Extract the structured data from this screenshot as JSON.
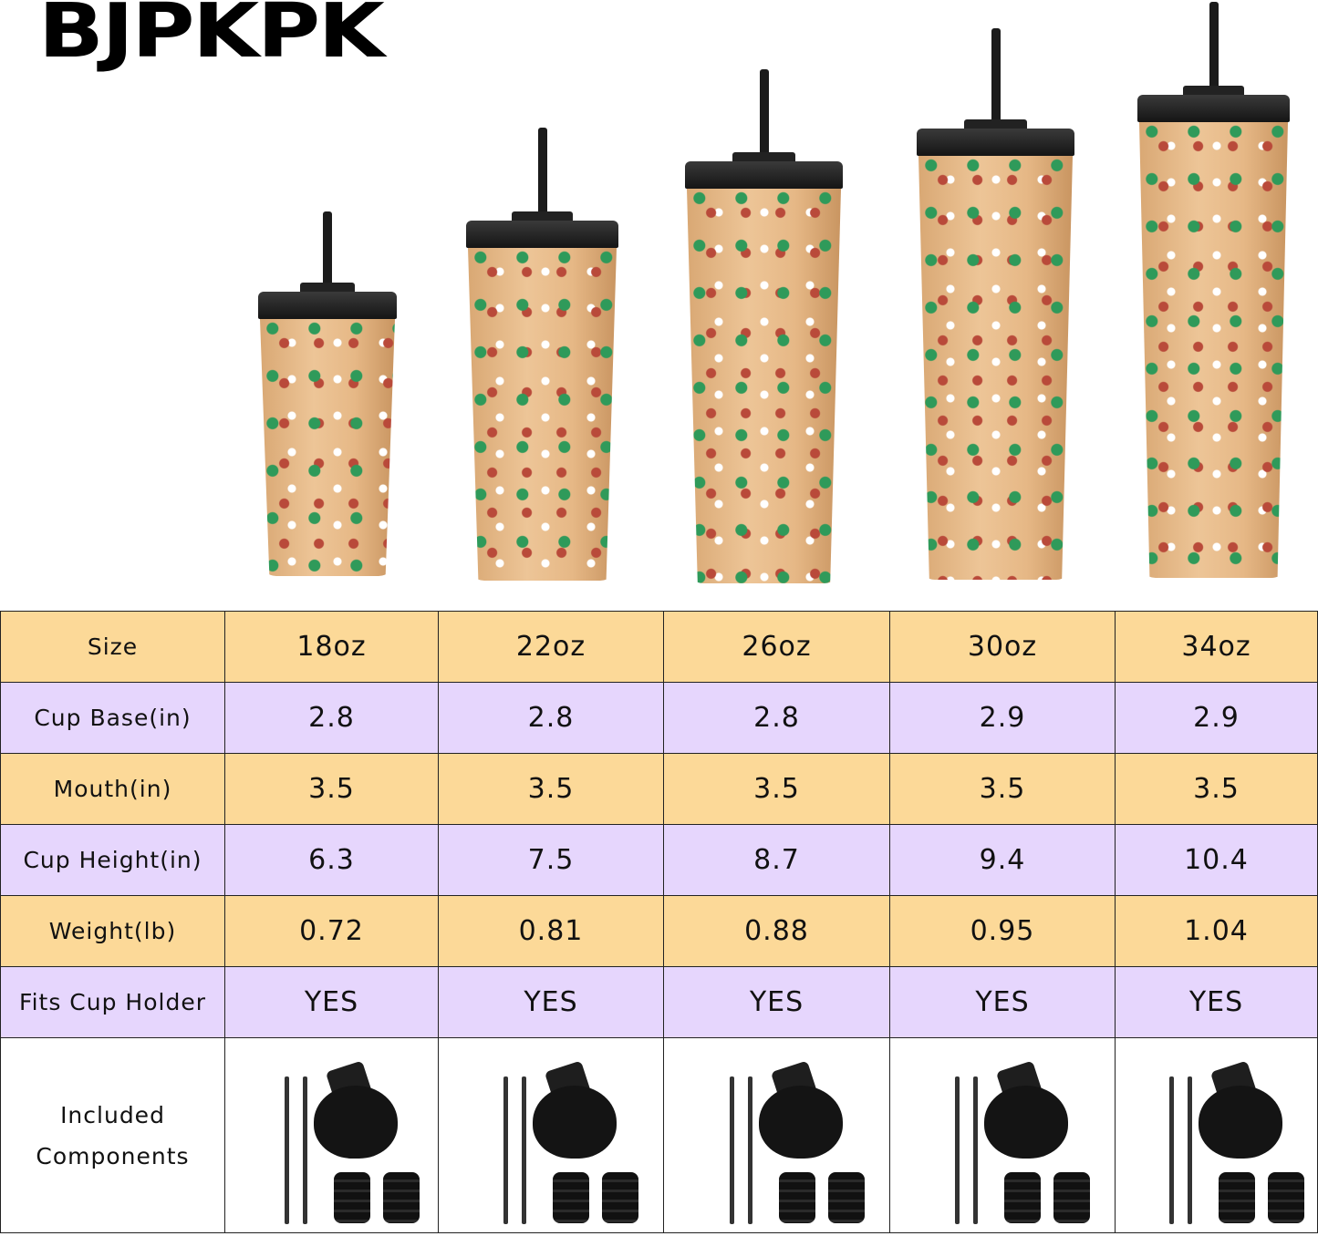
{
  "brand": {
    "logo_text": "BJPKPK"
  },
  "colors": {
    "header_row": "#fcd998",
    "alt_row": "#e6d6fd",
    "tumbler_body": "#e6b886",
    "lid": "#1b1b1b"
  },
  "table": {
    "columns": [
      "18oz",
      "22oz",
      "26oz",
      "30oz",
      "34oz"
    ],
    "rows": [
      {
        "label": "Size",
        "values": [
          "18oz",
          "22oz",
          "26oz",
          "30oz",
          "34oz"
        ]
      },
      {
        "label": "Cup Base(in)",
        "values": [
          "2.8",
          "2.8",
          "2.8",
          "2.9",
          "2.9"
        ]
      },
      {
        "label": "Mouth(in)",
        "values": [
          "3.5",
          "3.5",
          "3.5",
          "3.5",
          "3.5"
        ]
      },
      {
        "label": "Cup Height(in)",
        "values": [
          "6.3",
          "7.5",
          "8.7",
          "9.4",
          "10.4"
        ]
      },
      {
        "label": "Weight(lb)",
        "values": [
          "0.72",
          "0.81",
          "0.88",
          "0.95",
          "1.04"
        ]
      },
      {
        "label": "Fits Cup Holder",
        "values": [
          "YES",
          "YES",
          "YES",
          "YES",
          "YES"
        ]
      }
    ],
    "components_label_line1": "Included",
    "components_label_line2": "Components",
    "components": [
      "straw",
      "straw",
      "flip-lid",
      "plug",
      "plug"
    ]
  }
}
